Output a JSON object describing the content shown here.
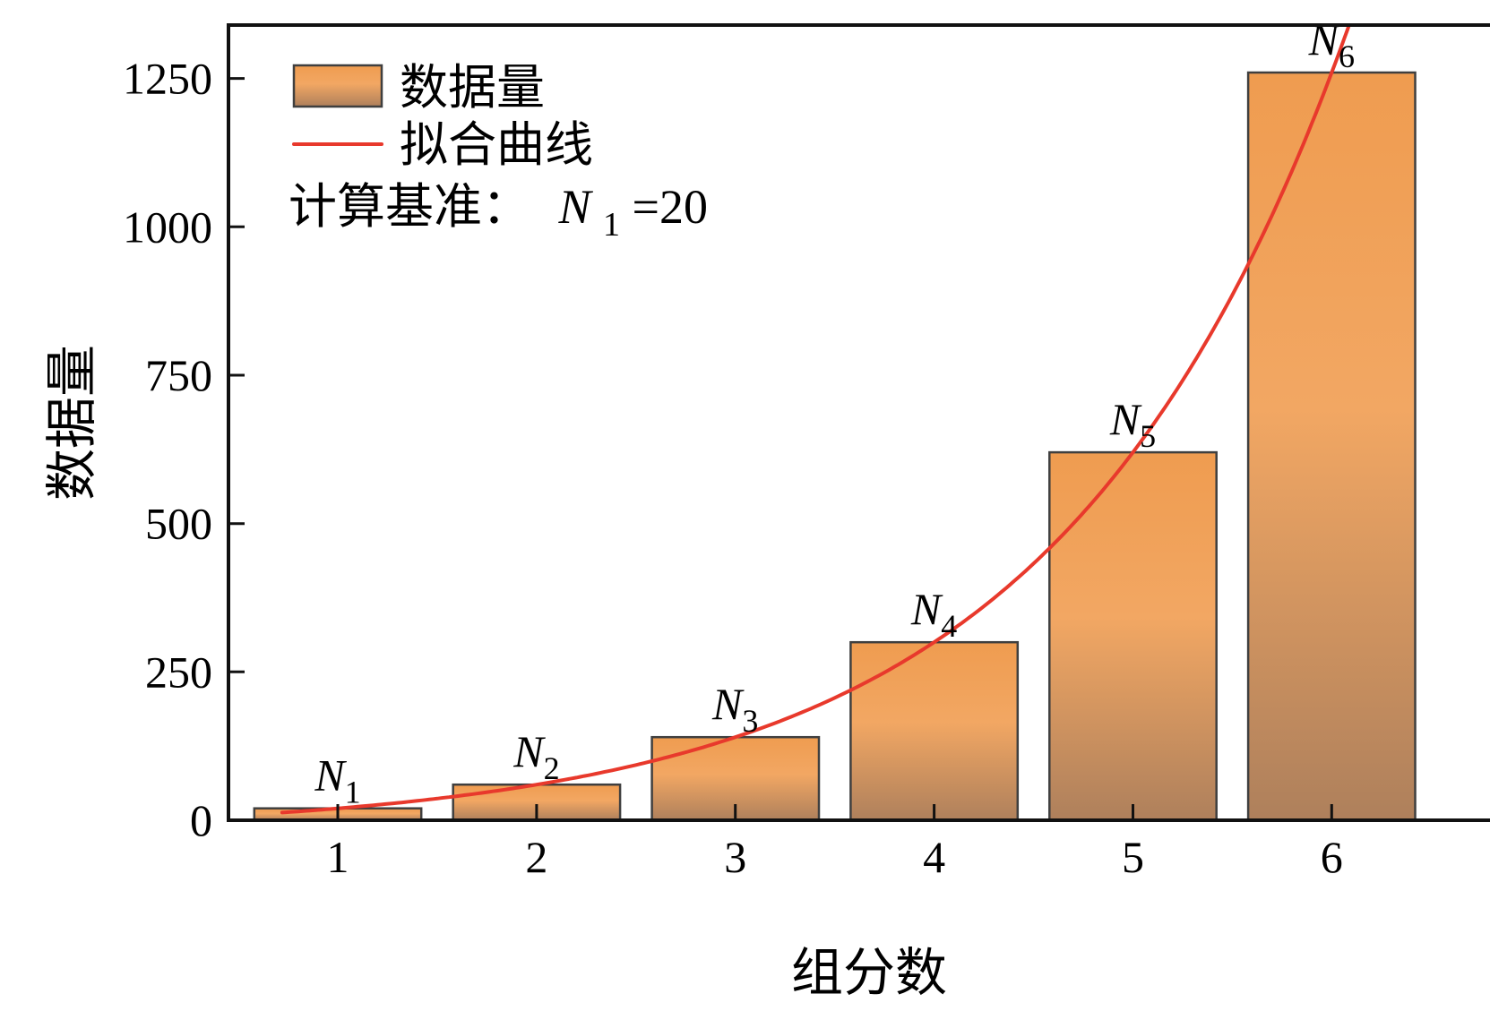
{
  "chart_data": {
    "type": "bar",
    "title": "",
    "xlabel": "组分数",
    "ylabel": "数据量",
    "categories": [
      "1",
      "2",
      "3",
      "4",
      "5",
      "6"
    ],
    "values": [
      20,
      60,
      140,
      300,
      620,
      1260
    ],
    "bar_labels": [
      {
        "base": "N",
        "sub": "1"
      },
      {
        "base": "N",
        "sub": "2"
      },
      {
        "base": "N",
        "sub": "3"
      },
      {
        "base": "N",
        "sub": "4"
      },
      {
        "base": "N",
        "sub": "5"
      },
      {
        "base": "N",
        "sub": "6"
      }
    ],
    "xticks": [
      "1",
      "2",
      "3",
      "4",
      "5",
      "6"
    ],
    "yticks": [
      0,
      250,
      500,
      750,
      1000,
      1250
    ],
    "xlim": [
      0.45,
      6.9
    ],
    "ylim": [
      0,
      1340
    ],
    "grid": false,
    "legend": {
      "position": "top-left",
      "items": [
        {
          "type": "bar",
          "label": "数据量"
        },
        {
          "type": "line",
          "label": "拟合曲线"
        }
      ],
      "annotation": {
        "prefix": "计算基准：",
        "var": "N",
        "var_sub": "1",
        "suffix": "=20"
      }
    },
    "fit": {
      "type": "exponential-doubling",
      "base_value": 20
    },
    "colors": {
      "bar_gradient_top": "#EF9C50",
      "bar_gradient_mid": "#F2A763",
      "bar_gradient_bottom": "#AE805C",
      "bar_border": "#3F3F3F",
      "curve": "#E8392C",
      "axis": "#111111",
      "text": "#000000",
      "background": "#FFFFFF"
    }
  }
}
